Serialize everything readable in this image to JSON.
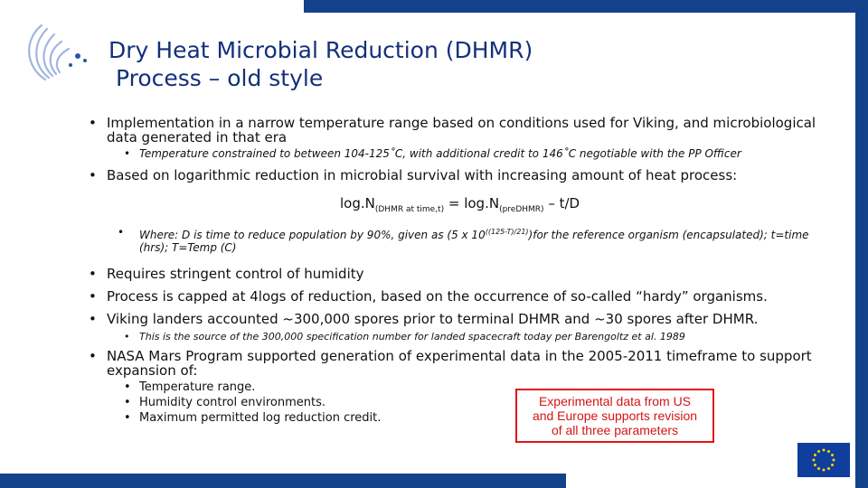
{
  "title": {
    "line1": "Dry Heat Microbial Reduction (DHMR)",
    "line2": "Process – old style"
  },
  "bullets": {
    "b1_line1": "Implementation in a narrow temperature range based on conditions used for Viking, and microbiological",
    "b1_line2": "data generated in that era",
    "b1_sub": "Temperature constrained to between 104-125˚C, with additional credit to 146˚C negotiable with the PP Officer",
    "b2": "Based on logarithmic reduction in microbial survival with increasing amount of heat process:",
    "formula": {
      "part1": "log.N",
      "sub1": "(DHMR at time,t)",
      "part2": " = log.N",
      "sub2": "(preDHMR)",
      "part3": " – t/D"
    },
    "where": {
      "line1_a": "Where: D is time to reduce population by 90%, given as (5 x 10",
      "sup": "((125-T)/21)",
      "line1_b": ")for the reference organism (encapsulated); t=time",
      "line2": "(hrs); T=Temp (C)"
    },
    "b3": "Requires stringent control of humidity",
    "b4": "Process is capped at 4logs of reduction, based on the occurrence of so-called “hardy” organisms.",
    "b5": "Viking landers accounted ~300,000 spores prior to terminal DHMR and ~30 spores after DHMR.",
    "b5_sub": "This is the source of the 300,000 specification number for landed spacecraft today per Barengoltz et al. 1989",
    "b6_line1": "NASA Mars Program supported generation of experimental data in the 2005-2011 timeframe to support",
    "b6_line2": "expansion of:",
    "b6_subs": [
      "Temperature range.",
      "Humidity control environments.",
      "Maximum permitted log reduction credit."
    ],
    "bullet_char": "•"
  },
  "callout": {
    "line1": "Experimental data from US",
    "line2": "and Europe supports revision",
    "line3": "of all three parameters"
  },
  "colors": {
    "brand_blue": "#14428a",
    "title_blue": "#14307a",
    "callout_red": "#d31515"
  },
  "icons": {
    "logo": "agency-swoosh-logo",
    "flag": "eu-flag-icon"
  }
}
